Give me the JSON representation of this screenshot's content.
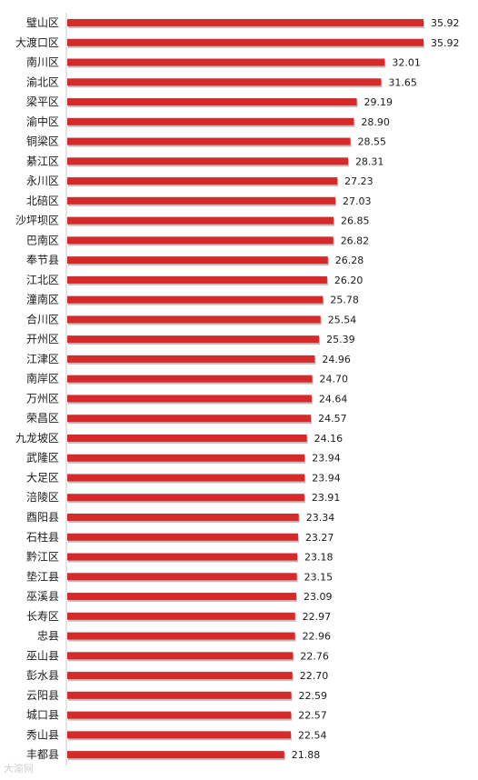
{
  "chart_data": {
    "type": "bar",
    "orientation": "horizontal",
    "bar_color": "#d62a2a",
    "bar_shadow_color": "#8a8a8a",
    "categories": [
      "璧山区",
      "大渡口区",
      "南川区",
      "渝北区",
      "梁平区",
      "渝中区",
      "铜梁区",
      "綦江区",
      "永川区",
      "北碚区",
      "沙坪坝区",
      "巴南区",
      "奉节县",
      "江北区",
      "潼南区",
      "合川区",
      "开州区",
      "江津区",
      "南岸区",
      "万州区",
      "荣昌区",
      "九龙坡区",
      "武隆区",
      "大足区",
      "涪陵区",
      "酉阳县",
      "石柱县",
      "黔江区",
      "垫江县",
      "巫溪县",
      "长寿区",
      "忠县",
      "巫山县",
      "彭水县",
      "云阳县",
      "城口县",
      "秀山县",
      "丰都县"
    ],
    "values": [
      35.92,
      35.92,
      32.01,
      31.65,
      29.19,
      28.9,
      28.55,
      28.31,
      27.23,
      27.03,
      26.85,
      26.82,
      26.28,
      26.2,
      25.78,
      25.54,
      25.39,
      24.96,
      24.7,
      24.64,
      24.57,
      24.16,
      23.94,
      23.94,
      23.91,
      23.34,
      23.27,
      23.18,
      23.15,
      23.09,
      22.97,
      22.96,
      22.76,
      22.7,
      22.59,
      22.57,
      22.54,
      21.88
    ],
    "value_labels": [
      "35.92",
      "35.92",
      "32.01",
      "31.65",
      "29.19",
      "28.90",
      "28.55",
      "28.31",
      "27.23",
      "27.03",
      "26.85",
      "26.82",
      "26.28",
      "26.20",
      "25.78",
      "25.54",
      "25.39",
      "24.96",
      "24.70",
      "24.64",
      "24.57",
      "24.16",
      "23.94",
      "23.94",
      "23.91",
      "23.34",
      "23.27",
      "23.18",
      "23.15",
      "23.09",
      "22.97",
      "22.96",
      "22.76",
      "22.70",
      "22.59",
      "22.57",
      "22.54",
      "21.88"
    ],
    "xlim": [
      0,
      35.92
    ],
    "grid": false,
    "legend": "none",
    "title": "",
    "xlabel": "",
    "ylabel": ""
  },
  "watermark": "大渝网"
}
